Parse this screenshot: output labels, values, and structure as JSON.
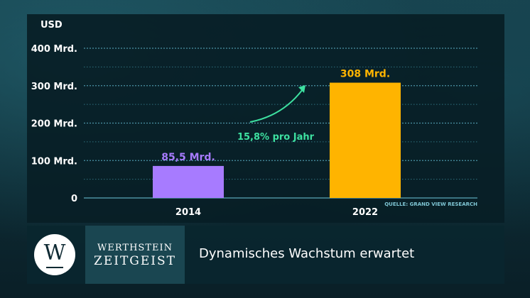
{
  "chart_data": {
    "type": "bar",
    "unit_label": "USD",
    "categories": [
      "2014",
      "2022"
    ],
    "values": [
      85.5,
      308
    ],
    "value_labels": [
      "85,5 Mrd.",
      "308 Mrd."
    ],
    "bar_colors": [
      "#a77bff",
      "#ffb400"
    ],
    "ylim": [
      0,
      400
    ],
    "yticks": [
      0,
      100,
      200,
      300,
      400
    ],
    "ytick_labels": [
      "0",
      "100 Mrd.",
      "200 Mrd.",
      "300 Mrd.",
      "400 Mrd."
    ],
    "minor_gridlines": [
      50,
      150,
      250,
      350
    ],
    "grid": true,
    "annotation": "15,8% pro Jahr",
    "annotation_color": "#3de0a0",
    "source": "QUELLE: GRAND VIEW RESEARCH"
  },
  "footer": {
    "logo_letter": "W",
    "brand_line1": "WERTHSTEIN",
    "brand_line2": "ZEITGEIST",
    "subtitle": "Dynamisches Wachstum erwartet"
  }
}
